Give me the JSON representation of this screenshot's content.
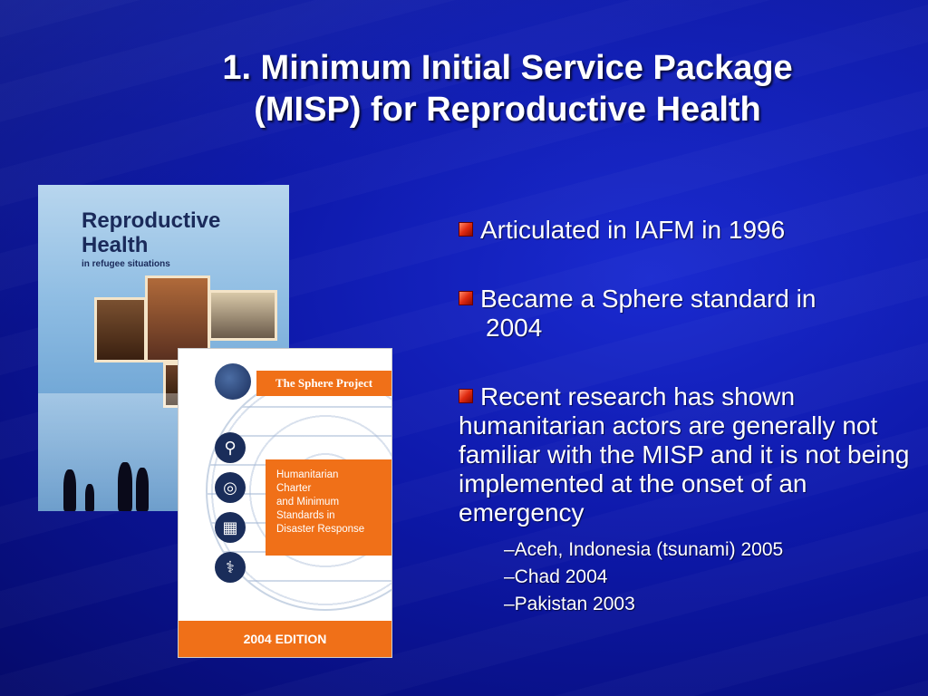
{
  "slide": {
    "title_line1": "1. Minimum Initial Service Package",
    "title_line2": "(MISP) for Reproductive Health"
  },
  "bullets": [
    {
      "text": "Articulated in IAFM in 1996"
    },
    {
      "text_line1": "Became a Sphere standard in",
      "text_line2": "2004"
    },
    {
      "text": "Recent research has shown humanitarian actors are generally not familiar with the MISP and it is not being implemented at the onset of an emergency"
    }
  ],
  "sub_bullets": [
    "–Aceh, Indonesia (tsunami) 2005",
    "–Chad 2004",
    "–Pakistan 2003"
  ],
  "book_reproductive_health": {
    "title_line1": "Reproductive",
    "title_line2": "Health",
    "subtitle": "in refugee situations"
  },
  "book_sphere": {
    "header": "The Sphere Project",
    "box_line1": "Humanitarian",
    "box_line2": "Charter",
    "box_line3": "and Minimum",
    "box_line4": "Standards in",
    "box_line5": "Disaster Response",
    "edition": "2004 EDITION"
  },
  "colors": {
    "background": "#0d18a8",
    "bullet_square": "#e02a10",
    "sphere_orange": "#f07018"
  }
}
